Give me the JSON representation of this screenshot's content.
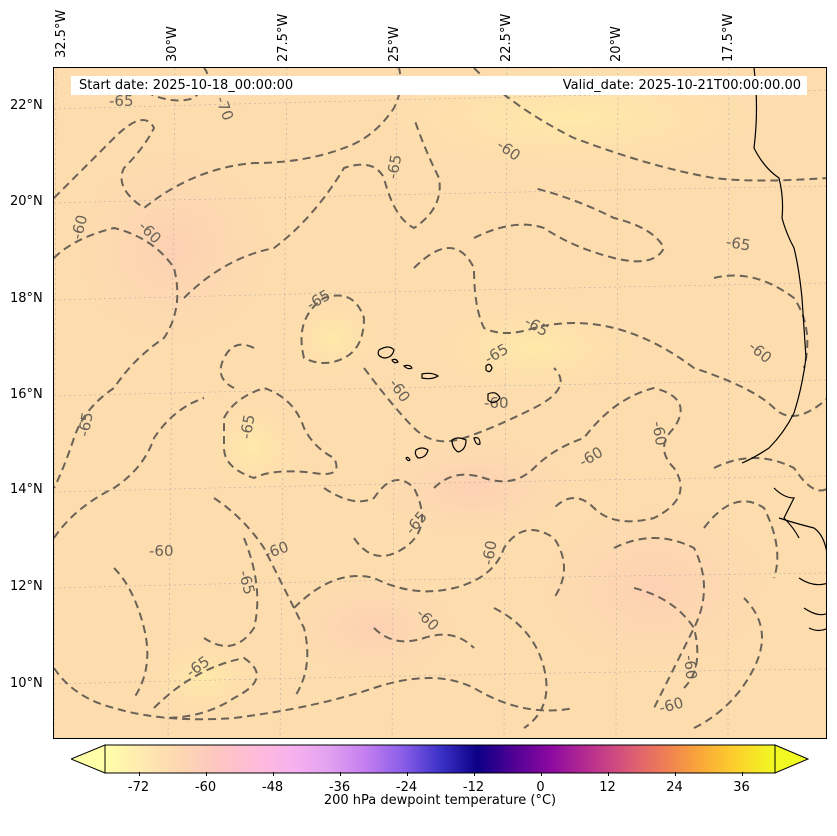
{
  "header": {
    "start_date": "Start date: 2025-10-18_00:00:00",
    "valid_date": "Valid_date: 2025-10-21T00:00:00.00"
  },
  "map": {
    "longitude_labels": [
      "32.5°W",
      "30°W",
      "27.5°W",
      "25°W",
      "22.5°W",
      "20°W",
      "17.5°W"
    ],
    "latitude_labels": [
      "22°N",
      "20°N",
      "18°N",
      "16°N",
      "14°N",
      "12°N",
      "10°N"
    ],
    "contour_style": "dashed",
    "contour_color": "#6b6257",
    "background_color": "#fddcae",
    "contour_labels": [
      {
        "text": "-65"
      },
      {
        "text": "-70"
      },
      {
        "text": "-65"
      },
      {
        "text": "-60"
      },
      {
        "text": "-65"
      },
      {
        "text": "-60"
      },
      {
        "text": "-60"
      },
      {
        "text": "-65"
      },
      {
        "text": "-65"
      },
      {
        "text": "-65"
      },
      {
        "text": "-65"
      },
      {
        "text": "-60"
      },
      {
        "text": "-65"
      },
      {
        "text": "-60"
      },
      {
        "text": "-60"
      },
      {
        "text": "-65"
      },
      {
        "text": "-60"
      },
      {
        "text": "-60"
      },
      {
        "text": "-60"
      },
      {
        "text": "-60"
      },
      {
        "text": "-65"
      },
      {
        "text": "-60"
      },
      {
        "text": "-60"
      },
      {
        "text": "-65"
      },
      {
        "text": "-60"
      },
      {
        "text": "-60"
      }
    ]
  },
  "colorbar": {
    "label": "200 hPa dewpoint temperature (°C)",
    "ticks": [
      "-72",
      "-60",
      "-48",
      "-36",
      "-24",
      "-12",
      "0",
      "12",
      "24",
      "36"
    ],
    "range": [
      -80,
      42
    ],
    "colors": [
      "#ffffa8",
      "#ffe9b0",
      "#fdd8b0",
      "#fdc6c0",
      "#ffbcd8",
      "#f8b2ee",
      "#e2a2f0",
      "#c47ef0",
      "#8a5ee8",
      "#3c32c8",
      "#0c0086",
      "#520094",
      "#8e0aa0",
      "#b82e90",
      "#d8567a",
      "#ee7c56",
      "#faa838",
      "#fcd22c",
      "#f0f921"
    ]
  }
}
